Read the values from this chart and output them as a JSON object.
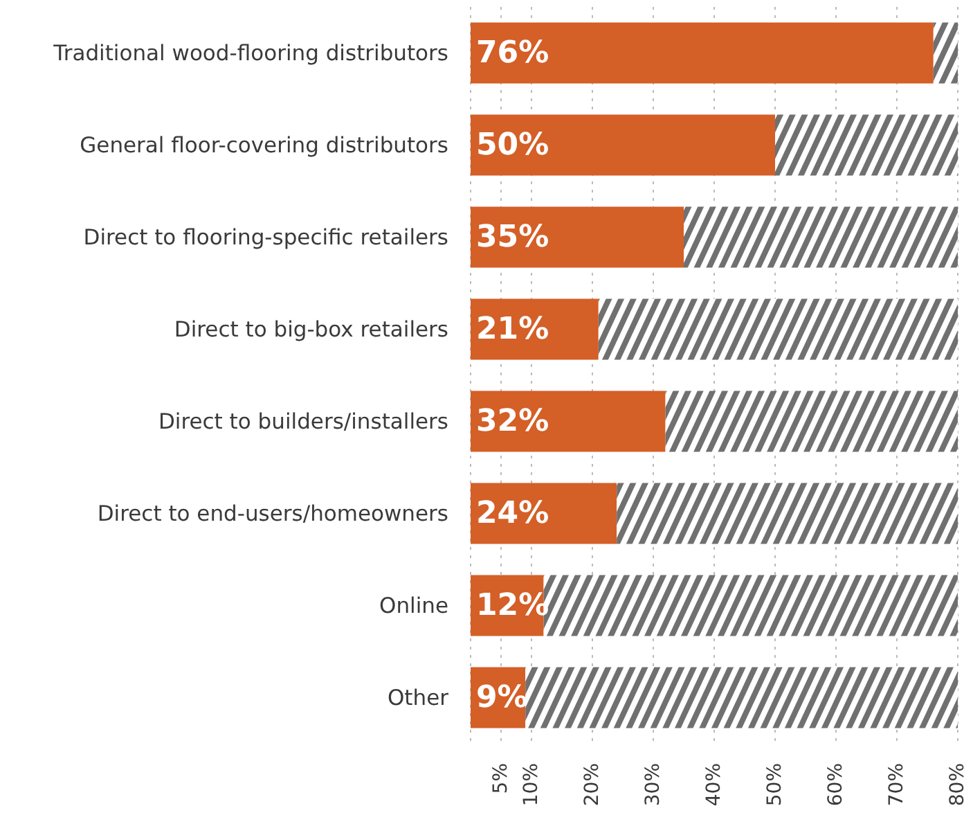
{
  "chart_data": {
    "type": "bar",
    "orientation": "horizontal",
    "stacked": true,
    "categories": [
      "Traditional wood-flooring distributors",
      "General floor-covering distributors",
      "Direct to flooring-specific retailers",
      "Direct to big-box retailers",
      "Direct to builders/installers",
      "Direct to end-users/homeowners",
      "Online",
      "Other"
    ],
    "series": [
      {
        "color": "#d45f27",
        "values": [
          76,
          50,
          35,
          21,
          32,
          24,
          12,
          9
        ],
        "value_labels": [
          "76%",
          "50%",
          "35%",
          "21%",
          "32%",
          "24%",
          "12%",
          "9%"
        ]
      },
      {
        "color": "#707070",
        "values": [
          4,
          30,
          45,
          59,
          48,
          56,
          68,
          71
        ]
      }
    ],
    "xlim": [
      0,
      80
    ],
    "xticks": [
      {
        "value": 5,
        "label": "5%"
      },
      {
        "value": 10,
        "label": "10%"
      },
      {
        "value": 20,
        "label": "20%"
      },
      {
        "value": 30,
        "label": "30%"
      },
      {
        "value": 40,
        "label": "40%"
      },
      {
        "value": 50,
        "label": "50%"
      },
      {
        "value": 60,
        "label": "60%"
      },
      {
        "value": 70,
        "label": "70%"
      },
      {
        "value": 80,
        "label": "80%"
      }
    ],
    "grid": "x"
  }
}
